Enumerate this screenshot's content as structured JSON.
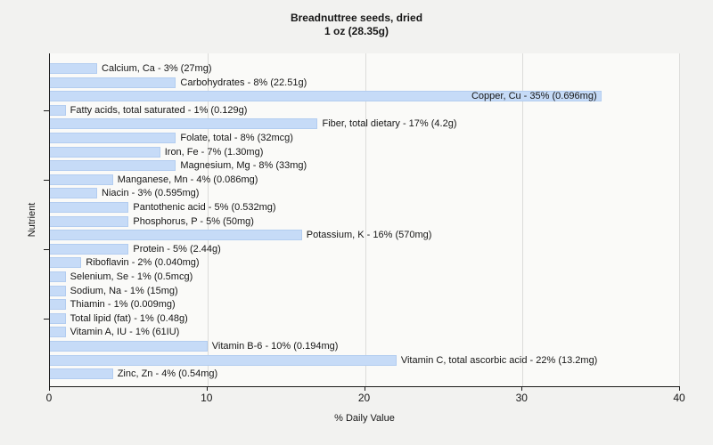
{
  "title": {
    "line1": "Breadnuttree seeds, dried",
    "line2": "1 oz (28.35g)"
  },
  "chart_data": {
    "type": "bar",
    "orientation": "horizontal",
    "title": "Breadnuttree seeds, dried",
    "subtitle": "1 oz (28.35g)",
    "xlabel": "% Daily Value",
    "ylabel": "Nutrient",
    "xlim": [
      0,
      40
    ],
    "xticks": [
      "0",
      "10",
      "20",
      "30",
      "40"
    ],
    "grid": "vertical-gridlines-at-xticks",
    "legend": "none",
    "bar_color": "#c6dbf7",
    "bar_edge_color": "#b3cdf0",
    "categories": [
      "Calcium, Ca",
      "Carbohydrates",
      "Copper, Cu",
      "Fatty acids, total saturated",
      "Fiber, total dietary",
      "Folate, total",
      "Iron, Fe",
      "Magnesium, Mg",
      "Manganese, Mn",
      "Niacin",
      "Pantothenic acid",
      "Phosphorus, P",
      "Potassium, K",
      "Protein",
      "Riboflavin",
      "Selenium, Se",
      "Sodium, Na",
      "Thiamin",
      "Total lipid (fat)",
      "Vitamin A, IU",
      "Vitamin B-6",
      "Vitamin C, total ascorbic acid",
      "Zinc, Zn"
    ],
    "values": [
      3,
      8,
      35,
      1,
      17,
      8,
      7,
      8,
      4,
      3,
      5,
      5,
      16,
      5,
      2,
      1,
      1,
      1,
      1,
      1,
      10,
      22,
      4
    ],
    "amounts": [
      "27mg",
      "22.51g",
      "0.696mg",
      "0.129g",
      "4.2g",
      "32mcg",
      "1.30mg",
      "33mg",
      "0.086mg",
      "0.595mg",
      "0.532mg",
      "50mg",
      "570mg",
      "2.44g",
      "0.040mg",
      "0.5mcg",
      "15mg",
      "0.009mg",
      "0.48g",
      "61IU",
      "0.194mg",
      "13.2mg",
      "0.54mg"
    ],
    "bar_labels": [
      "Calcium, Ca - 3% (27mg)",
      "Carbohydrates - 8% (22.51g)",
      "Copper, Cu - 35% (0.696mg)",
      "Fatty acids, total saturated - 1% (0.129g)",
      "Fiber, total dietary - 17% (4.2g)",
      "Folate, total - 8% (32mcg)",
      "Iron, Fe - 7% (1.30mg)",
      "Magnesium, Mg - 8% (33mg)",
      "Manganese, Mn - 4% (0.086mg)",
      "Niacin - 3% (0.595mg)",
      "Pantothenic acid - 5% (0.532mg)",
      "Phosphorus, P - 5% (50mg)",
      "Potassium, K - 16% (570mg)",
      "Protein - 5% (2.44g)",
      "Riboflavin - 2% (0.040mg)",
      "Selenium, Se - 1% (0.5mcg)",
      "Sodium, Na - 1% (15mg)",
      "Thiamin - 1% (0.009mg)",
      "Total lipid (fat) - 1% (0.48g)",
      "Vitamin A, IU - 1% (61IU)",
      "Vitamin B-6 - 10% (0.194mg)",
      "Vitamin C, total ascorbic acid - 22% (13.2mg)",
      "Zinc, Zn - 4% (0.54mg)"
    ],
    "label_inside": [
      "Copper, Cu"
    ],
    "y_axis_ticks_at": [
      "Fatty acids, total saturated",
      "Manganese, Mn",
      "Protein",
      "Total lipid (fat)"
    ]
  },
  "colors": {
    "figure_bg": "#f2f2f0",
    "plot_bg": "#fafaf8",
    "axis": "#1a1a1a",
    "gridline": "#dcdcda",
    "text": "#161616"
  }
}
